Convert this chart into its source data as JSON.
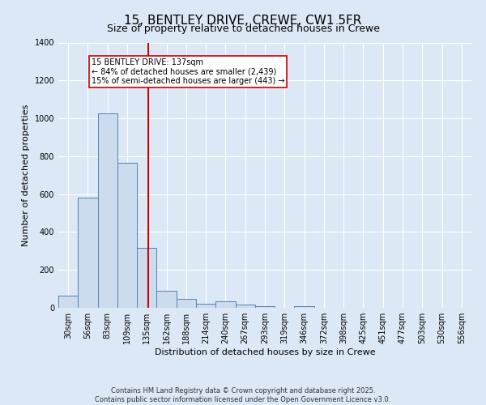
{
  "title": "15, BENTLEY DRIVE, CREWE, CW1 5FR",
  "subtitle": "Size of property relative to detached houses in Crewe",
  "xlabel": "Distribution of detached houses by size in Crewe",
  "ylabel": "Number of detached properties",
  "bin_labels": [
    "30sqm",
    "56sqm",
    "83sqm",
    "109sqm",
    "135sqm",
    "162sqm",
    "188sqm",
    "214sqm",
    "240sqm",
    "267sqm",
    "293sqm",
    "319sqm",
    "346sqm",
    "372sqm",
    "398sqm",
    "425sqm",
    "451sqm",
    "477sqm",
    "503sqm",
    "530sqm",
    "556sqm"
  ],
  "bar_values": [
    65,
    580,
    1025,
    765,
    315,
    90,
    45,
    22,
    35,
    15,
    10,
    0,
    10,
    0,
    0,
    0,
    0,
    0,
    0,
    0,
    0
  ],
  "bar_color": "#ccdcee",
  "bar_edge_color": "#5580b0",
  "red_line_color": "#cc0000",
  "annotation_text": "15 BENTLEY DRIVE: 137sqm\n← 84% of detached houses are smaller (2,439)\n15% of semi-detached houses are larger (443) →",
  "annotation_box_color": "#ffffff",
  "annotation_box_edge": "#cc0000",
  "ylim": [
    0,
    1400
  ],
  "yticks": [
    0,
    200,
    400,
    600,
    800,
    1000,
    1200,
    1400
  ],
  "bg_color": "#dce8f5",
  "grid_color": "#ffffff",
  "footer_line1": "Contains HM Land Registry data © Crown copyright and database right 2025.",
  "footer_line2": "Contains public sector information licensed under the Open Government Licence v3.0.",
  "title_fontsize": 11,
  "subtitle_fontsize": 9,
  "label_fontsize": 8,
  "tick_fontsize": 7,
  "footer_fontsize": 6,
  "annot_fontsize": 7
}
